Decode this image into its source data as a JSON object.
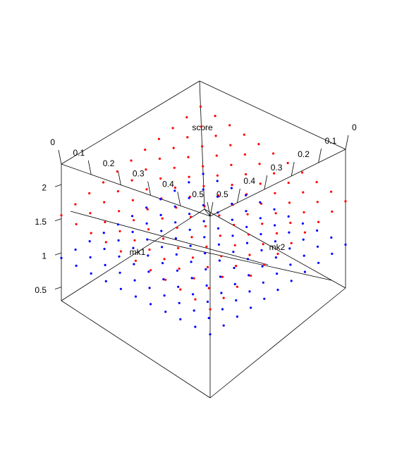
{
  "chart_data": {
    "type": "scatter",
    "title": "",
    "axes": {
      "x": {
        "label": "mk1",
        "ticks": [
          "0",
          "0.1",
          "0.2",
          "0.3",
          "0.4",
          "0.5"
        ],
        "range": [
          0,
          0.5
        ]
      },
      "y": {
        "label": "mk2",
        "ticks": [
          "0",
          "0.1",
          "0.2",
          "0.3",
          "0.4",
          "0.5"
        ],
        "range": [
          0,
          0.5
        ]
      },
      "z": {
        "label": "score",
        "ticks": [
          "0.5",
          "1",
          "1.5",
          "2"
        ],
        "range": [
          0.3,
          2.3
        ]
      }
    },
    "grid": false,
    "legend": "none",
    "series": [
      {
        "color": "#ff0000",
        "grid_values": [
          0.0,
          0.05,
          0.1,
          0.15,
          0.2,
          0.25,
          0.3,
          0.35,
          0.4,
          0.45,
          0.5
        ],
        "surface": "score = 1.9 - 0.7*mk1 - 0.7*mk2 + 0.3*mk1*mk2"
      },
      {
        "color": "#0000ff",
        "grid_values": [
          0.0,
          0.05,
          0.1,
          0.15,
          0.2,
          0.25,
          0.3,
          0.35,
          0.4,
          0.45,
          0.5
        ],
        "surface": "score = 0.85 + 0.15*mk1 + 0.15*mk2"
      }
    ]
  }
}
